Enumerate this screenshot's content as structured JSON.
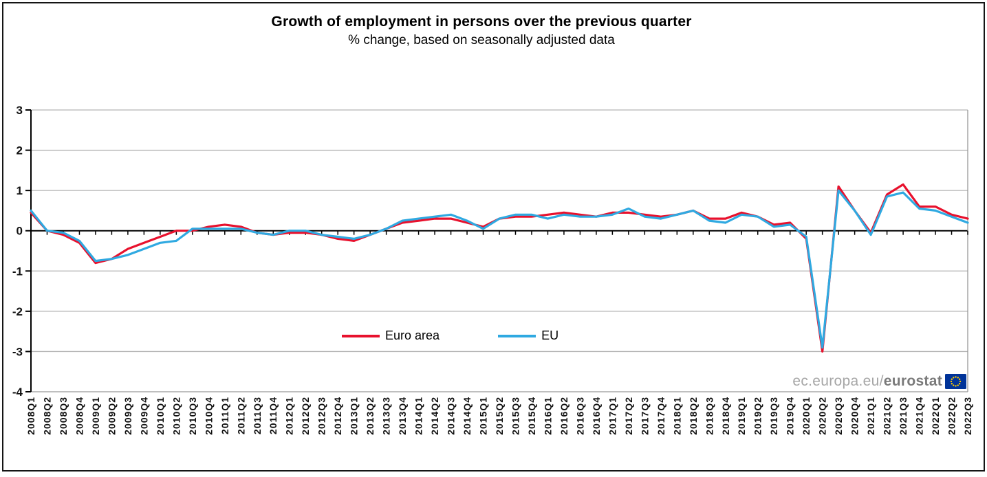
{
  "header": {
    "title": "Growth of employment in persons  over the previous quarter",
    "subtitle": "% change, based on seasonally adjusted data"
  },
  "watermark": {
    "prefix": "ec.europa.eu/",
    "bold": "eurostat"
  },
  "colors": {
    "euro_area": "#e8112d",
    "eu": "#2fa9e1",
    "grid": "#b3b3b3",
    "plot_border": "#999999",
    "axis": "#000000",
    "flag_blue": "#003399",
    "flag_stars": "#ffcc00"
  },
  "chart_data": {
    "type": "line",
    "title": "Growth of employment in persons  over the previous quarter",
    "subtitle": "% change, based on seasonally adjusted data",
    "xlabel": "",
    "ylabel": "",
    "ylim": [
      -4,
      3
    ],
    "yticks": [
      3,
      2,
      1,
      0,
      -1,
      -2,
      -3,
      -4
    ],
    "grid": "horizontal-gray",
    "legend_position": "inside-bottom-center",
    "categories": [
      "2008Q1",
      "2008Q2",
      "2008Q3",
      "2008Q4",
      "2009Q1",
      "2009Q2",
      "2009Q3",
      "2009Q4",
      "2010Q1",
      "2010Q2",
      "2010Q3",
      "2010Q4",
      "2011Q1",
      "2011Q2",
      "2011Q3",
      "2011Q4",
      "2012Q1",
      "2012Q2",
      "2012Q3",
      "2012Q4",
      "2013Q1",
      "2013Q2",
      "2013Q3",
      "2013Q4",
      "2014Q1",
      "2014Q2",
      "2014Q3",
      "2014Q4",
      "2015Q1",
      "2015Q2",
      "2015Q3",
      "2015Q4",
      "2016Q1",
      "2016Q2",
      "2016Q3",
      "2016Q4",
      "2017Q1",
      "2017Q2",
      "2017Q3",
      "2017Q4",
      "2018Q1",
      "2018Q2",
      "2018Q3",
      "2018Q4",
      "2019Q1",
      "2019Q2",
      "2019Q3",
      "2019Q4",
      "2020Q1",
      "2020Q2",
      "2020Q3",
      "2020Q4",
      "2021Q1",
      "2021Q2",
      "2021Q3",
      "2021Q4",
      "2022Q1",
      "2022Q2",
      "2022Q3"
    ],
    "series": [
      {
        "name": "Euro area",
        "color": "#e8112d",
        "values": [
          0.45,
          0.0,
          -0.1,
          -0.3,
          -0.8,
          -0.7,
          -0.45,
          -0.3,
          -0.15,
          0.0,
          0.0,
          0.1,
          0.15,
          0.1,
          -0.05,
          -0.1,
          -0.05,
          -0.05,
          -0.1,
          -0.2,
          -0.25,
          -0.1,
          0.05,
          0.2,
          0.25,
          0.3,
          0.3,
          0.2,
          0.1,
          0.3,
          0.35,
          0.35,
          0.4,
          0.45,
          0.4,
          0.35,
          0.45,
          0.45,
          0.4,
          0.35,
          0.4,
          0.5,
          0.3,
          0.3,
          0.45,
          0.35,
          0.15,
          0.2,
          -0.2,
          -3.0,
          1.1,
          0.5,
          -0.05,
          0.9,
          1.15,
          0.6,
          0.6,
          0.4,
          0.3
        ]
      },
      {
        "name": "EU",
        "color": "#2fa9e1",
        "values": [
          0.5,
          0.0,
          -0.05,
          -0.25,
          -0.75,
          -0.7,
          -0.6,
          -0.45,
          -0.3,
          -0.25,
          0.05,
          0.05,
          0.05,
          0.05,
          -0.05,
          -0.1,
          0.0,
          0.0,
          -0.1,
          -0.15,
          -0.2,
          -0.1,
          0.05,
          0.25,
          0.3,
          0.35,
          0.4,
          0.25,
          0.05,
          0.3,
          0.4,
          0.4,
          0.3,
          0.4,
          0.35,
          0.35,
          0.4,
          0.55,
          0.35,
          0.3,
          0.4,
          0.5,
          0.25,
          0.2,
          0.4,
          0.35,
          0.1,
          0.15,
          -0.15,
          -2.9,
          1.0,
          0.5,
          -0.1,
          0.85,
          0.95,
          0.55,
          0.5,
          0.35,
          0.2
        ]
      }
    ]
  }
}
